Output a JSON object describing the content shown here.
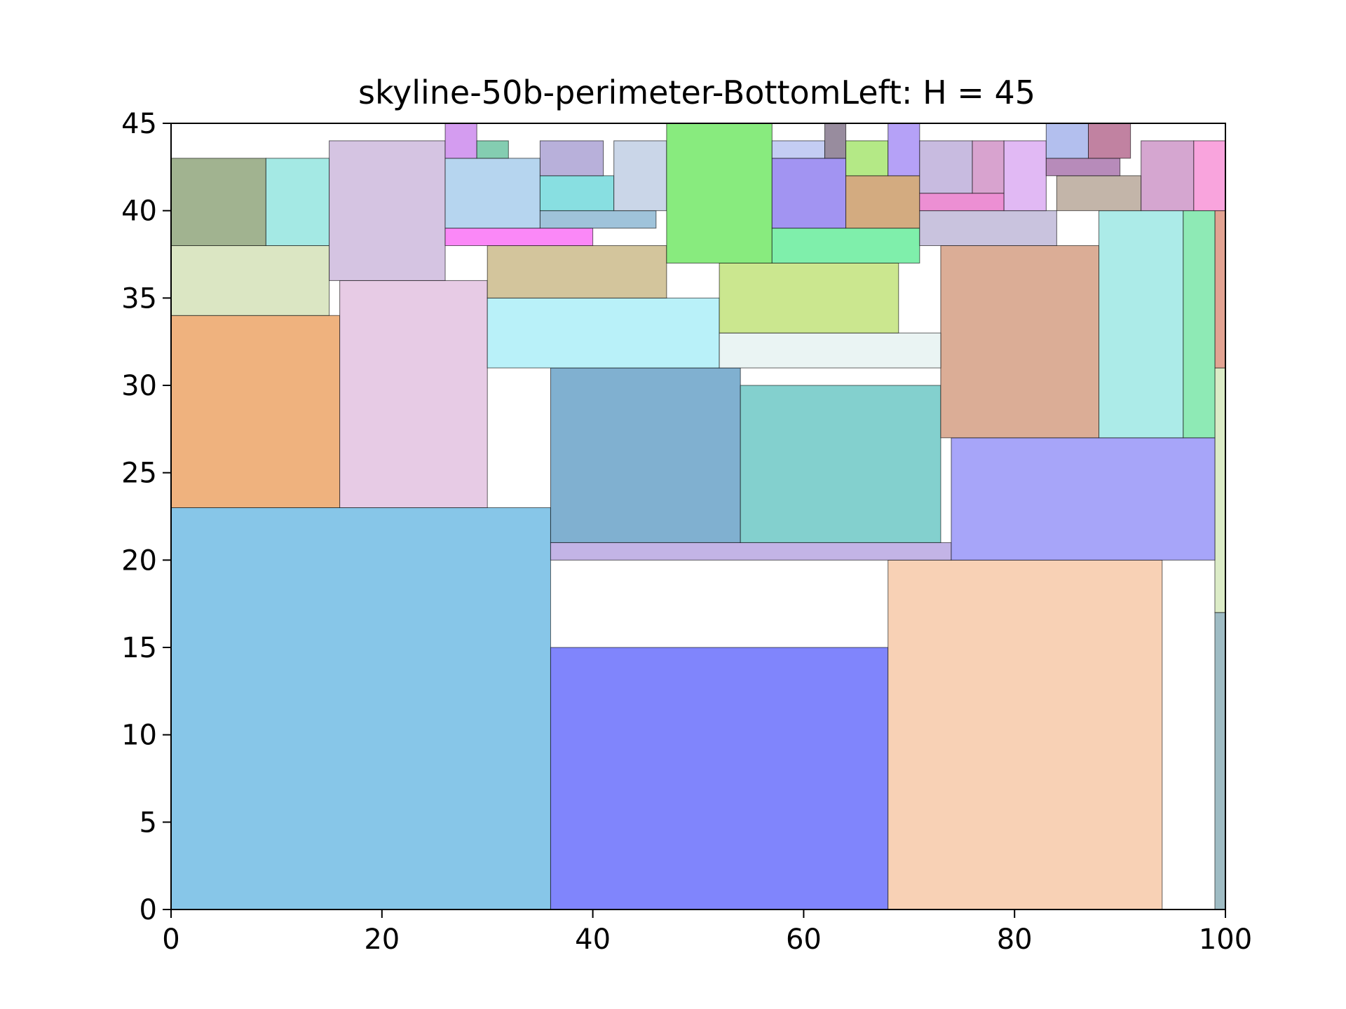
{
  "chart_data": {
    "type": "rectangles",
    "title": "skyline-50b-perimeter-BottomLeft: H = 45",
    "xlabel": "",
    "ylabel": "",
    "xlim": [
      0,
      100
    ],
    "ylim": [
      0,
      45
    ],
    "xticks": [
      0,
      20,
      40,
      60,
      80,
      100
    ],
    "yticks": [
      0,
      5,
      10,
      15,
      20,
      25,
      30,
      35,
      40,
      45
    ],
    "grid": false,
    "rects": [
      {
        "x": 0,
        "y": 0,
        "w": 36,
        "h": 23,
        "color": "#87c6e8"
      },
      {
        "x": 36,
        "y": 0,
        "w": 32,
        "h": 15,
        "color": "#8085fc"
      },
      {
        "x": 68,
        "y": 0,
        "w": 26,
        "h": 20,
        "color": "#f8d1b5"
      },
      {
        "x": 99,
        "y": 0,
        "w": 1,
        "h": 17,
        "color": "#9fbcc4"
      },
      {
        "x": 99,
        "y": 17,
        "w": 1,
        "h": 14,
        "color": "#dcecc7"
      },
      {
        "x": 99,
        "y": 31,
        "w": 1,
        "h": 9,
        "color": "#e3a392"
      },
      {
        "x": 0,
        "y": 23,
        "w": 16,
        "h": 11,
        "color": "#efb27e"
      },
      {
        "x": 16,
        "y": 23,
        "w": 14,
        "h": 13,
        "color": "#e7cbe5"
      },
      {
        "x": 0,
        "y": 34,
        "w": 15,
        "h": 4,
        "color": "#dbe6c3"
      },
      {
        "x": 0,
        "y": 38,
        "w": 9,
        "h": 5,
        "color": "#a1b390"
      },
      {
        "x": 9,
        "y": 38,
        "w": 6,
        "h": 5,
        "color": "#a4e9e4"
      },
      {
        "x": 15,
        "y": 36,
        "w": 11,
        "h": 8,
        "color": "#d5c4e2"
      },
      {
        "x": 36,
        "y": 20,
        "w": 38,
        "h": 1,
        "color": "#c3b4e6"
      },
      {
        "x": 36,
        "y": 21,
        "w": 18,
        "h": 10,
        "color": "#80b0d0"
      },
      {
        "x": 54,
        "y": 21,
        "w": 19,
        "h": 9,
        "color": "#83d0ce"
      },
      {
        "x": 74,
        "y": 20,
        "w": 25,
        "h": 7,
        "color": "#a7a5f9"
      },
      {
        "x": 73,
        "y": 27,
        "w": 15,
        "h": 11,
        "color": "#dbad96"
      },
      {
        "x": 88,
        "y": 27,
        "w": 8,
        "h": 13,
        "color": "#acebe8"
      },
      {
        "x": 96,
        "y": 27,
        "w": 3,
        "h": 13,
        "color": "#8eeab5"
      },
      {
        "x": 30,
        "y": 31,
        "w": 22,
        "h": 4,
        "color": "#b9f1f9"
      },
      {
        "x": 52,
        "y": 31,
        "w": 21,
        "h": 2,
        "color": "#eaf4f3"
      },
      {
        "x": 30,
        "y": 35,
        "w": 17,
        "h": 3,
        "color": "#d3c59c"
      },
      {
        "x": 52,
        "y": 33,
        "w": 17,
        "h": 4,
        "color": "#cbe78f"
      },
      {
        "x": 26,
        "y": 38,
        "w": 14,
        "h": 1,
        "color": "#fb88f7"
      },
      {
        "x": 26,
        "y": 39,
        "w": 9,
        "h": 4,
        "color": "#b6d5ef"
      },
      {
        "x": 26,
        "y": 43,
        "w": 3,
        "h": 2,
        "color": "#d49cf0"
      },
      {
        "x": 29,
        "y": 43,
        "w": 3,
        "h": 1,
        "color": "#84cdb1"
      },
      {
        "x": 35,
        "y": 39,
        "w": 11,
        "h": 1,
        "color": "#9fc3da"
      },
      {
        "x": 35,
        "y": 40,
        "w": 7,
        "h": 2,
        "color": "#88dfe1"
      },
      {
        "x": 35,
        "y": 42,
        "w": 6,
        "h": 2,
        "color": "#b8b0da"
      },
      {
        "x": 42,
        "y": 40,
        "w": 5,
        "h": 4,
        "color": "#cad6e8"
      },
      {
        "x": 47,
        "y": 37,
        "w": 10,
        "h": 8,
        "color": "#88eb7e"
      },
      {
        "x": 57,
        "y": 37,
        "w": 14,
        "h": 2,
        "color": "#7fefab"
      },
      {
        "x": 57,
        "y": 39,
        "w": 7,
        "h": 4,
        "color": "#a294f2"
      },
      {
        "x": 57,
        "y": 43,
        "w": 5,
        "h": 1,
        "color": "#c4cdf3"
      },
      {
        "x": 62,
        "y": 43,
        "w": 2,
        "h": 2,
        "color": "#988c9e"
      },
      {
        "x": 64,
        "y": 39,
        "w": 7,
        "h": 3,
        "color": "#d3ab80"
      },
      {
        "x": 64,
        "y": 42,
        "w": 4,
        "h": 2,
        "color": "#b4e986"
      },
      {
        "x": 68,
        "y": 42,
        "w": 3,
        "h": 3,
        "color": "#b5a1f7"
      },
      {
        "x": 71,
        "y": 38,
        "w": 13,
        "h": 2,
        "color": "#c9c3de"
      },
      {
        "x": 71,
        "y": 40,
        "w": 8,
        "h": 1,
        "color": "#ec8fd3"
      },
      {
        "x": 71,
        "y": 41,
        "w": 5,
        "h": 3,
        "color": "#c8bbe0"
      },
      {
        "x": 76,
        "y": 41,
        "w": 3,
        "h": 3,
        "color": "#d8a3cf"
      },
      {
        "x": 79,
        "y": 40,
        "w": 4,
        "h": 4,
        "color": "#e1b9f4"
      },
      {
        "x": 84,
        "y": 40,
        "w": 8,
        "h": 2,
        "color": "#c3b5a9"
      },
      {
        "x": 83,
        "y": 42,
        "w": 7,
        "h": 1,
        "color": "#b78bba"
      },
      {
        "x": 83,
        "y": 43,
        "w": 4,
        "h": 2,
        "color": "#b3bfee"
      },
      {
        "x": 87,
        "y": 43,
        "w": 4,
        "h": 2,
        "color": "#c182a1"
      },
      {
        "x": 92,
        "y": 40,
        "w": 5,
        "h": 4,
        "color": "#d5a6d0"
      },
      {
        "x": 97,
        "y": 40,
        "w": 3,
        "h": 4,
        "color": "#f9a4dd"
      }
    ]
  }
}
